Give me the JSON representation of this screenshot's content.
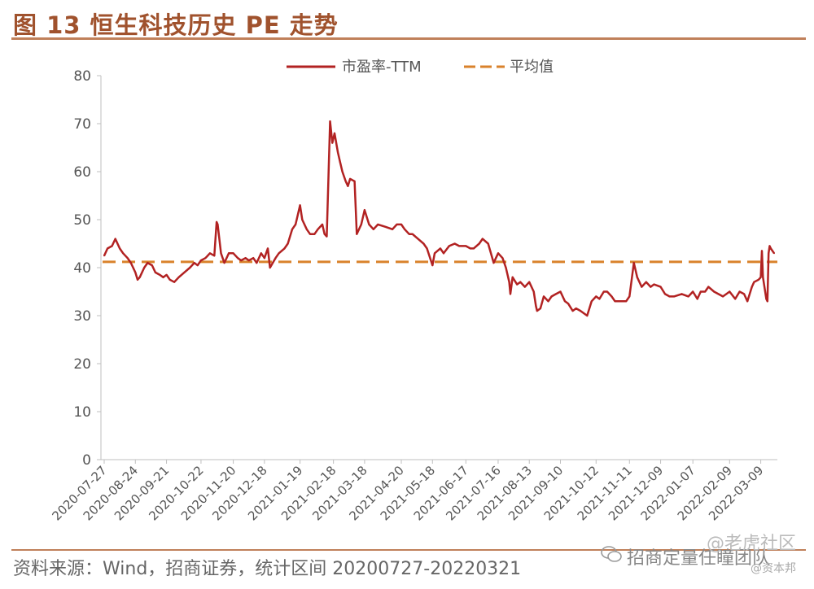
{
  "header": {
    "title": "图 13  恒生科技历史 PE 走势"
  },
  "footer": {
    "source": "资料来源：Wind，招商证券，统计区间 20200727-20220321",
    "team": "招商定量任瞳团队",
    "wm_site": "@老虎社区",
    "wm_small": "@资本邦"
  },
  "colors": {
    "pe_line": "#b22222",
    "avg_line": "#d9822b",
    "accent": "#a0522d"
  },
  "chart_data": {
    "type": "line",
    "title": "",
    "xlabel": "",
    "ylabel": "",
    "ylim": [
      0,
      80
    ],
    "yticks": [
      "0",
      "10",
      "20",
      "30",
      "40",
      "50",
      "60",
      "70",
      "80"
    ],
    "grid": false,
    "legend_position": "top-center",
    "x_tick_labels": [
      "2020-07-27",
      "2020-08-24",
      "2020-09-21",
      "2020-10-22",
      "2020-11-20",
      "2020-12-18",
      "2021-01-19",
      "2021-02-18",
      "2021-03-18",
      "2021-04-20",
      "2021-05-18",
      "2021-06-17",
      "2021-07-16",
      "2021-08-13",
      "2021-09-10",
      "2021-10-12",
      "2021-11-11",
      "2021-12-09",
      "2022-01-07",
      "2022-02-09",
      "2022-03-09"
    ],
    "series": [
      {
        "name": "市盈率-TTM",
        "style": "solid",
        "color": "#b22222",
        "points": [
          [
            "2020-07-27",
            42.5
          ],
          [
            "2020-07-30",
            44
          ],
          [
            "2020-08-03",
            44.5
          ],
          [
            "2020-08-06",
            46
          ],
          [
            "2020-08-10",
            44
          ],
          [
            "2020-08-13",
            43
          ],
          [
            "2020-08-17",
            42
          ],
          [
            "2020-08-20",
            41
          ],
          [
            "2020-08-24",
            39
          ],
          [
            "2020-08-26",
            37.5
          ],
          [
            "2020-08-28",
            38
          ],
          [
            "2020-09-01",
            40
          ],
          [
            "2020-09-04",
            41
          ],
          [
            "2020-09-08",
            40.5
          ],
          [
            "2020-09-11",
            39
          ],
          [
            "2020-09-15",
            38.5
          ],
          [
            "2020-09-18",
            38
          ],
          [
            "2020-09-21",
            38.5
          ],
          [
            "2020-09-24",
            37.5
          ],
          [
            "2020-09-28",
            37
          ],
          [
            "2020-10-02",
            38
          ],
          [
            "2020-10-07",
            39
          ],
          [
            "2020-10-12",
            40
          ],
          [
            "2020-10-16",
            41
          ],
          [
            "2020-10-19",
            40.5
          ],
          [
            "2020-10-22",
            41.5
          ],
          [
            "2020-10-26",
            42
          ],
          [
            "2020-10-30",
            43
          ],
          [
            "2020-11-03",
            42.5
          ],
          [
            "2020-11-05",
            49.5
          ],
          [
            "2020-11-06",
            49
          ],
          [
            "2020-11-09",
            43
          ],
          [
            "2020-11-12",
            41
          ],
          [
            "2020-11-16",
            43
          ],
          [
            "2020-11-20",
            43
          ],
          [
            "2020-11-24",
            42
          ],
          [
            "2020-11-27",
            41.5
          ],
          [
            "2020-12-01",
            42
          ],
          [
            "2020-12-04",
            41.5
          ],
          [
            "2020-12-08",
            42
          ],
          [
            "2020-12-11",
            41
          ],
          [
            "2020-12-15",
            43
          ],
          [
            "2020-12-18",
            42
          ],
          [
            "2020-12-21",
            44
          ],
          [
            "2020-12-23",
            40
          ],
          [
            "2020-12-28",
            42
          ],
          [
            "2020-12-31",
            43
          ],
          [
            "2021-01-05",
            44
          ],
          [
            "2021-01-08",
            45
          ],
          [
            "2021-01-12",
            48
          ],
          [
            "2021-01-15",
            49
          ],
          [
            "2021-01-19",
            53
          ],
          [
            "2021-01-21",
            50
          ],
          [
            "2021-01-25",
            48
          ],
          [
            "2021-01-28",
            47
          ],
          [
            "2021-02-01",
            47
          ],
          [
            "2021-02-04",
            48
          ],
          [
            "2021-02-08",
            49
          ],
          [
            "2021-02-10",
            47
          ],
          [
            "2021-02-12",
            46.5
          ],
          [
            "2021-02-15",
            70.5
          ],
          [
            "2021-02-17",
            66
          ],
          [
            "2021-02-19",
            68
          ],
          [
            "2021-02-22",
            64
          ],
          [
            "2021-02-24",
            62
          ],
          [
            "2021-02-26",
            60
          ],
          [
            "2021-03-01",
            58
          ],
          [
            "2021-03-03",
            57
          ],
          [
            "2021-03-05",
            58.5
          ],
          [
            "2021-03-09",
            58
          ],
          [
            "2021-03-11",
            47
          ],
          [
            "2021-03-15",
            49
          ],
          [
            "2021-03-18",
            52
          ],
          [
            "2021-03-22",
            49
          ],
          [
            "2021-03-26",
            48
          ],
          [
            "2021-03-30",
            49
          ],
          [
            "2021-04-06",
            48.5
          ],
          [
            "2021-04-12",
            48
          ],
          [
            "2021-04-16",
            49
          ],
          [
            "2021-04-20",
            49
          ],
          [
            "2021-04-23",
            48
          ],
          [
            "2021-04-27",
            47
          ],
          [
            "2021-04-30",
            47
          ],
          [
            "2021-05-05",
            46
          ],
          [
            "2021-05-10",
            45
          ],
          [
            "2021-05-13",
            44
          ],
          [
            "2021-05-18",
            40.5
          ],
          [
            "2021-05-20",
            43
          ],
          [
            "2021-05-25",
            44
          ],
          [
            "2021-05-28",
            43
          ],
          [
            "2021-06-02",
            44.5
          ],
          [
            "2021-06-07",
            45
          ],
          [
            "2021-06-11",
            44.5
          ],
          [
            "2021-06-17",
            44.5
          ],
          [
            "2021-06-21",
            44
          ],
          [
            "2021-06-24",
            44
          ],
          [
            "2021-06-29",
            45
          ],
          [
            "2021-07-02",
            46
          ],
          [
            "2021-07-07",
            45
          ],
          [
            "2021-07-12",
            41
          ],
          [
            "2021-07-14",
            42
          ],
          [
            "2021-07-16",
            43
          ],
          [
            "2021-07-20",
            42
          ],
          [
            "2021-07-23",
            40
          ],
          [
            "2021-07-26",
            37
          ],
          [
            "2021-07-27",
            34.5
          ],
          [
            "2021-07-29",
            38
          ],
          [
            "2021-08-02",
            36.5
          ],
          [
            "2021-08-05",
            37
          ],
          [
            "2021-08-09",
            36
          ],
          [
            "2021-08-13",
            37
          ],
          [
            "2021-08-17",
            35
          ],
          [
            "2021-08-19",
            32
          ],
          [
            "2021-08-20",
            31
          ],
          [
            "2021-08-23",
            31.5
          ],
          [
            "2021-08-26",
            34
          ],
          [
            "2021-08-30",
            33
          ],
          [
            "2021-09-02",
            34
          ],
          [
            "2021-09-06",
            34.5
          ],
          [
            "2021-09-10",
            35
          ],
          [
            "2021-09-14",
            33
          ],
          [
            "2021-09-17",
            32.5
          ],
          [
            "2021-09-21",
            31
          ],
          [
            "2021-09-24",
            31.5
          ],
          [
            "2021-09-28",
            31
          ],
          [
            "2021-10-04",
            30
          ],
          [
            "2021-10-08",
            33
          ],
          [
            "2021-10-12",
            34
          ],
          [
            "2021-10-15",
            33.5
          ],
          [
            "2021-10-19",
            35
          ],
          [
            "2021-10-22",
            35
          ],
          [
            "2021-10-26",
            34
          ],
          [
            "2021-10-29",
            33
          ],
          [
            "2021-11-03",
            33
          ],
          [
            "2021-11-08",
            33
          ],
          [
            "2021-11-11",
            34
          ],
          [
            "2021-11-15",
            41
          ],
          [
            "2021-11-18",
            38
          ],
          [
            "2021-11-22",
            36
          ],
          [
            "2021-11-26",
            37
          ],
          [
            "2021-11-30",
            36
          ],
          [
            "2021-12-03",
            36.5
          ],
          [
            "2021-12-09",
            36
          ],
          [
            "2021-12-13",
            34.5
          ],
          [
            "2021-12-17",
            34
          ],
          [
            "2021-12-21",
            34
          ],
          [
            "2021-12-28",
            34.5
          ],
          [
            "2022-01-03",
            34
          ],
          [
            "2022-01-07",
            35
          ],
          [
            "2022-01-11",
            33.5
          ],
          [
            "2022-01-14",
            35
          ],
          [
            "2022-01-18",
            35
          ],
          [
            "2022-01-21",
            36
          ],
          [
            "2022-01-26",
            35
          ],
          [
            "2022-02-03",
            34
          ],
          [
            "2022-02-09",
            35
          ],
          [
            "2022-02-14",
            33.5
          ],
          [
            "2022-02-18",
            35
          ],
          [
            "2022-02-22",
            34.5
          ],
          [
            "2022-02-25",
            33
          ],
          [
            "2022-03-01",
            36
          ],
          [
            "2022-03-03",
            37
          ],
          [
            "2022-03-07",
            37.5
          ],
          [
            "2022-03-09",
            38
          ],
          [
            "2022-03-10",
            43.5
          ],
          [
            "2022-03-11",
            38
          ],
          [
            "2022-03-14",
            33.5
          ],
          [
            "2022-03-15",
            33
          ],
          [
            "2022-03-16",
            43
          ],
          [
            "2022-03-17",
            44.5
          ],
          [
            "2022-03-18",
            44
          ],
          [
            "2022-03-21",
            43
          ]
        ]
      },
      {
        "name": "平均值",
        "style": "dashed",
        "color": "#d9822b",
        "value": 41.2
      }
    ]
  }
}
